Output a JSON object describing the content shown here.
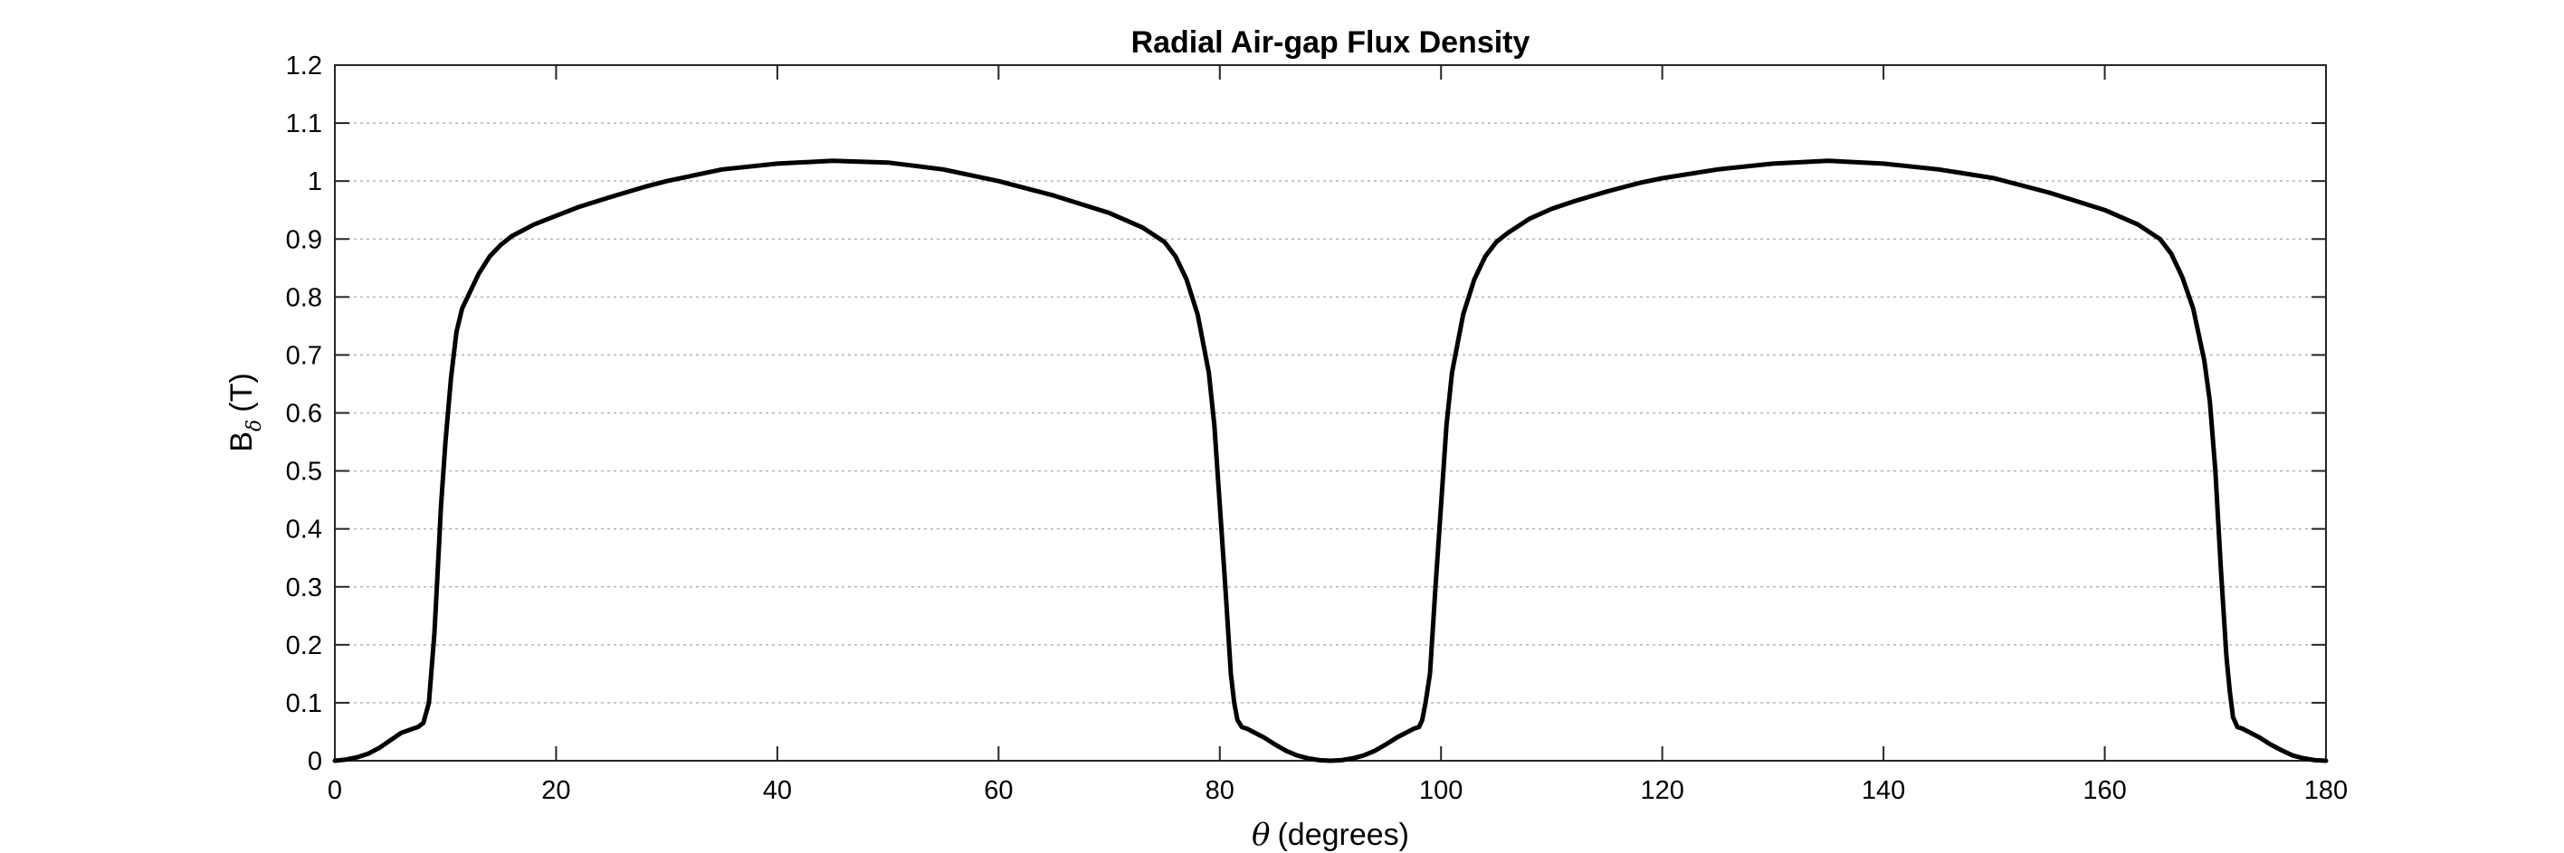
{
  "chart_data": {
    "type": "line",
    "title": "Radial Air-gap Flux Density",
    "xlabel": {
      "symbol": "θ",
      "text": "(degrees)"
    },
    "ylabel": {
      "main": "B",
      "sub": "δ",
      "unit": "(T)"
    },
    "xlim": [
      0,
      180
    ],
    "ylim": [
      0,
      1.2
    ],
    "xticks": [
      0,
      20,
      40,
      60,
      80,
      100,
      120,
      140,
      160,
      180
    ],
    "xtick_labels": [
      "0",
      "20",
      "40",
      "60",
      "80",
      "100",
      "120",
      "140",
      "160",
      "180"
    ],
    "yticks": [
      0,
      0.1,
      0.2,
      0.3,
      0.4,
      0.5,
      0.6,
      0.7,
      0.8,
      0.9,
      1,
      1.1,
      1.2
    ],
    "ytick_labels": [
      "0",
      "0.1",
      "0.2",
      "0.3",
      "0.4",
      "0.5",
      "0.6",
      "0.7",
      "0.8",
      "0.9",
      "1",
      "1.1",
      "1.2"
    ],
    "grid": "horizontal dotted",
    "series_color": "#000000",
    "series": [
      {
        "x": [
          0,
          1,
          2,
          3,
          4,
          5,
          6,
          7,
          7.5,
          8,
          8.5,
          9,
          9.3,
          9.6,
          10,
          10.5,
          11,
          11.5,
          12,
          13,
          14,
          15,
          16,
          18,
          20,
          22,
          25,
          28,
          30,
          35,
          40,
          45,
          50,
          55,
          60,
          65,
          70,
          73,
          75,
          76,
          77,
          78,
          79,
          79.5,
          80,
          80.5,
          81,
          81.3,
          81.6,
          82,
          82.5,
          83,
          84,
          85,
          86,
          87,
          88,
          89,
          90,
          91,
          92,
          93,
          94,
          95,
          96,
          97,
          97.5,
          98,
          98.3,
          98.6,
          99,
          99.5,
          100,
          100.5,
          101,
          102,
          103,
          104,
          105,
          106,
          108,
          110,
          112,
          115,
          118,
          120,
          125,
          130,
          135,
          140,
          145,
          150,
          155,
          160,
          163,
          165,
          166,
          167,
          168,
          169,
          169.5,
          170,
          170.5,
          171,
          171.3,
          171.6,
          172,
          172.5,
          173,
          174,
          175,
          176,
          177,
          178,
          179,
          180
        ],
        "y": [
          0,
          0.002,
          0.006,
          0.012,
          0.022,
          0.035,
          0.048,
          0.055,
          0.058,
          0.065,
          0.1,
          0.22,
          0.33,
          0.44,
          0.55,
          0.66,
          0.74,
          0.78,
          0.8,
          0.84,
          0.87,
          0.89,
          0.905,
          0.925,
          0.94,
          0.955,
          0.973,
          0.99,
          1.0,
          1.02,
          1.03,
          1.035,
          1.032,
          1.02,
          1.0,
          0.975,
          0.945,
          0.92,
          0.895,
          0.87,
          0.83,
          0.77,
          0.67,
          0.58,
          0.44,
          0.3,
          0.15,
          0.1,
          0.07,
          0.058,
          0.055,
          0.05,
          0.04,
          0.028,
          0.017,
          0.009,
          0.004,
          0.001,
          0,
          0.001,
          0.004,
          0.009,
          0.017,
          0.028,
          0.04,
          0.05,
          0.055,
          0.058,
          0.07,
          0.1,
          0.15,
          0.3,
          0.44,
          0.58,
          0.67,
          0.77,
          0.83,
          0.87,
          0.895,
          0.91,
          0.935,
          0.952,
          0.965,
          0.982,
          0.997,
          1.005,
          1.02,
          1.03,
          1.035,
          1.03,
          1.02,
          1.005,
          0.98,
          0.95,
          0.925,
          0.9,
          0.875,
          0.835,
          0.78,
          0.69,
          0.62,
          0.5,
          0.33,
          0.18,
          0.12,
          0.075,
          0.058,
          0.055,
          0.05,
          0.04,
          0.028,
          0.018,
          0.009,
          0.004,
          0.001,
          0
        ]
      }
    ]
  }
}
